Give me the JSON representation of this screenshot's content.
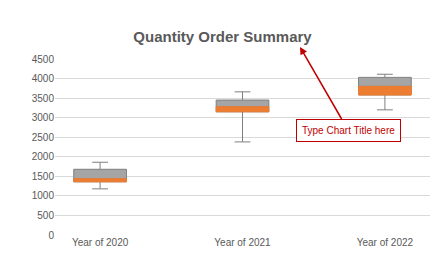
{
  "chart_data": {
    "type": "box",
    "title": "Quantity Order Summary",
    "categories": [
      "Year of 2020",
      "Year of 2021",
      "Year of 2022"
    ],
    "min": [
      1180,
      2380,
      3200
    ],
    "q1": [
      1360,
      3150,
      3580
    ],
    "median": [
      1440,
      3280,
      3800
    ],
    "q3": [
      1680,
      3450,
      4030
    ],
    "max": [
      1860,
      3660,
      4110
    ],
    "colors": [
      "#ed7d31",
      "#a5a5a5"
    ],
    "ylim": [
      0,
      4500
    ],
    "yticks": [
      0,
      500,
      1000,
      1500,
      2000,
      2500,
      3000,
      3500,
      4000,
      4500
    ],
    "grid": true,
    "annotations": [
      "Type Chart Title here"
    ]
  }
}
